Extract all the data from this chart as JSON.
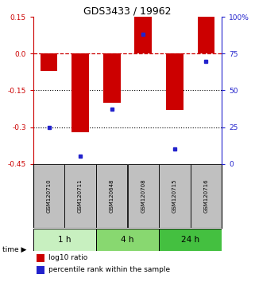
{
  "title": "GDS3433 / 19962",
  "samples": [
    "GSM120710",
    "GSM120711",
    "GSM120648",
    "GSM120708",
    "GSM120715",
    "GSM120716"
  ],
  "log10_ratio": [
    -0.07,
    -0.32,
    -0.2,
    0.15,
    -0.23,
    0.15
  ],
  "percentile_rank": [
    25,
    5,
    37,
    88,
    10,
    70
  ],
  "time_groups": [
    {
      "label": "1 h",
      "indices": [
        0,
        1
      ],
      "color": "#c8f0c0"
    },
    {
      "label": "4 h",
      "indices": [
        2,
        3
      ],
      "color": "#88d870"
    },
    {
      "label": "24 h",
      "indices": [
        4,
        5
      ],
      "color": "#44c040"
    }
  ],
  "ylim_left": [
    -0.45,
    0.15
  ],
  "ylim_right": [
    0,
    100
  ],
  "yticks_left": [
    0.15,
    0.0,
    -0.15,
    -0.3,
    -0.45
  ],
  "yticks_right": [
    100,
    75,
    50,
    25,
    0
  ],
  "bar_color": "#cc0000",
  "square_color": "#2222cc",
  "bar_width": 0.55,
  "bg_color": "#ffffff",
  "sample_box_color": "#c0c0c0",
  "dashed_line_color": "#cc0000",
  "dotted_line_color": "#000000",
  "title_color": "#000000",
  "left_axis_color": "#cc0000",
  "right_axis_color": "#2222cc"
}
